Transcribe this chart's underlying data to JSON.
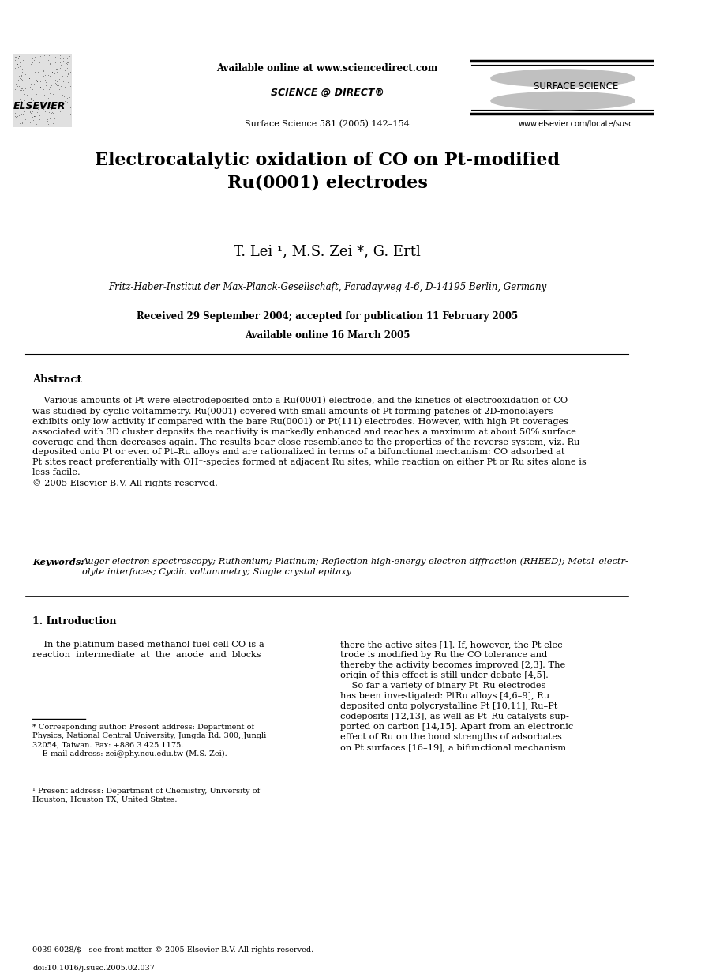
{
  "bg_color": "#ffffff",
  "page_width": 9.07,
  "page_height": 12.38,
  "header": {
    "available_online": "Available online at www.sciencedirect.com",
    "journal_info": "Surface Science 581 (2005) 142–154",
    "website": "www.elsevier.com/locate/susc",
    "journal_name": "SURFACE SCIENCE"
  },
  "title": "Electrocatalytic oxidation of CO on Pt-modified\nRu(0001) electrodes",
  "authors": "T. Lei ¹, M.S. Zei *, G. Ertl",
  "affiliation": "Fritz-Haber-Institut der Max-Planck-Gesellschaft, Faradayweg 4-6, D-14195 Berlin, Germany",
  "received": "Received 29 September 2004; accepted for publication 11 February 2005",
  "available": "Available online 16 March 2005",
  "abstract_title": "Abstract",
  "abstract_text": "    Various amounts of Pt were electrodeposited onto a Ru(0001) electrode, and the kinetics of electrooxidation of CO\nwas studied by cyclic voltammetry. Ru(0001) covered with small amounts of Pt forming patches of 2D-monolayers\nexhibits only low activity if compared with the bare Ru(0001) or Pt(111) electrodes. However, with high Pt coverages\nassociated with 3D cluster deposits the reactivity is markedly enhanced and reaches a maximum at about 50% surface\ncoverage and then decreases again. The results bear close resemblance to the properties of the reverse system, viz. Ru\ndeposited onto Pt or even of Pt–Ru alloys and are rationalized in terms of a bifunctional mechanism: CO adsorbed at\nPt sites react preferentially with OH⁻-species formed at adjacent Ru sites, while reaction on either Pt or Ru sites alone is\nless facile.\n© 2005 Elsevier B.V. All rights reserved.",
  "keywords_label": "Keywords:",
  "keywords_text": "Auger electron spectroscopy; Ruthenium; Platinum; Reflection high-energy electron diffraction (RHEED); Metal–electr-\nolyte interfaces; Cyclic voltammetry; Single crystal epitaxy",
  "section1_title": "1. Introduction",
  "section1_col1": "    In the platinum based methanol fuel cell CO is a\nreaction  intermediate  at  the  anode  and  blocks",
  "section1_col2": "there the active sites [1]. If, however, the Pt elec-\ntrode is modified by Ru the CO tolerance and\nthereby the activity becomes improved [2,3]. The\norigin of this effect is still under debate [4,5].\n    So far a variety of binary Pt–Ru electrodes\nhas been investigated: PtRu alloys [4,6–9], Ru\ndeposited onto polycrystalline Pt [10,11], Ru–Pt\ncodeposits [12,13], as well as Pt–Ru catalysts sup-\nported on carbon [14,15]. Apart from an electronic\neffect of Ru on the bond strengths of adsorbates\non Pt surfaces [16–19], a bifunctional mechanism",
  "footnote_star": "* Corresponding author. Present address: Department of\nPhysics, National Central University, Jungda Rd. 300, Jungli\n32054, Taiwan. Fax: +886 3 425 1175.\n    E-mail address: zei@phy.ncu.edu.tw (M.S. Zei).",
  "footnote_1": "¹ Present address: Department of Chemistry, University of\nHouston, Houston TX, United States.",
  "bottom_text1": "0039-6028/$ - see front matter © 2005 Elsevier B.V. All rights reserved.",
  "bottom_text2": "doi:10.1016/j.susc.2005.02.037"
}
